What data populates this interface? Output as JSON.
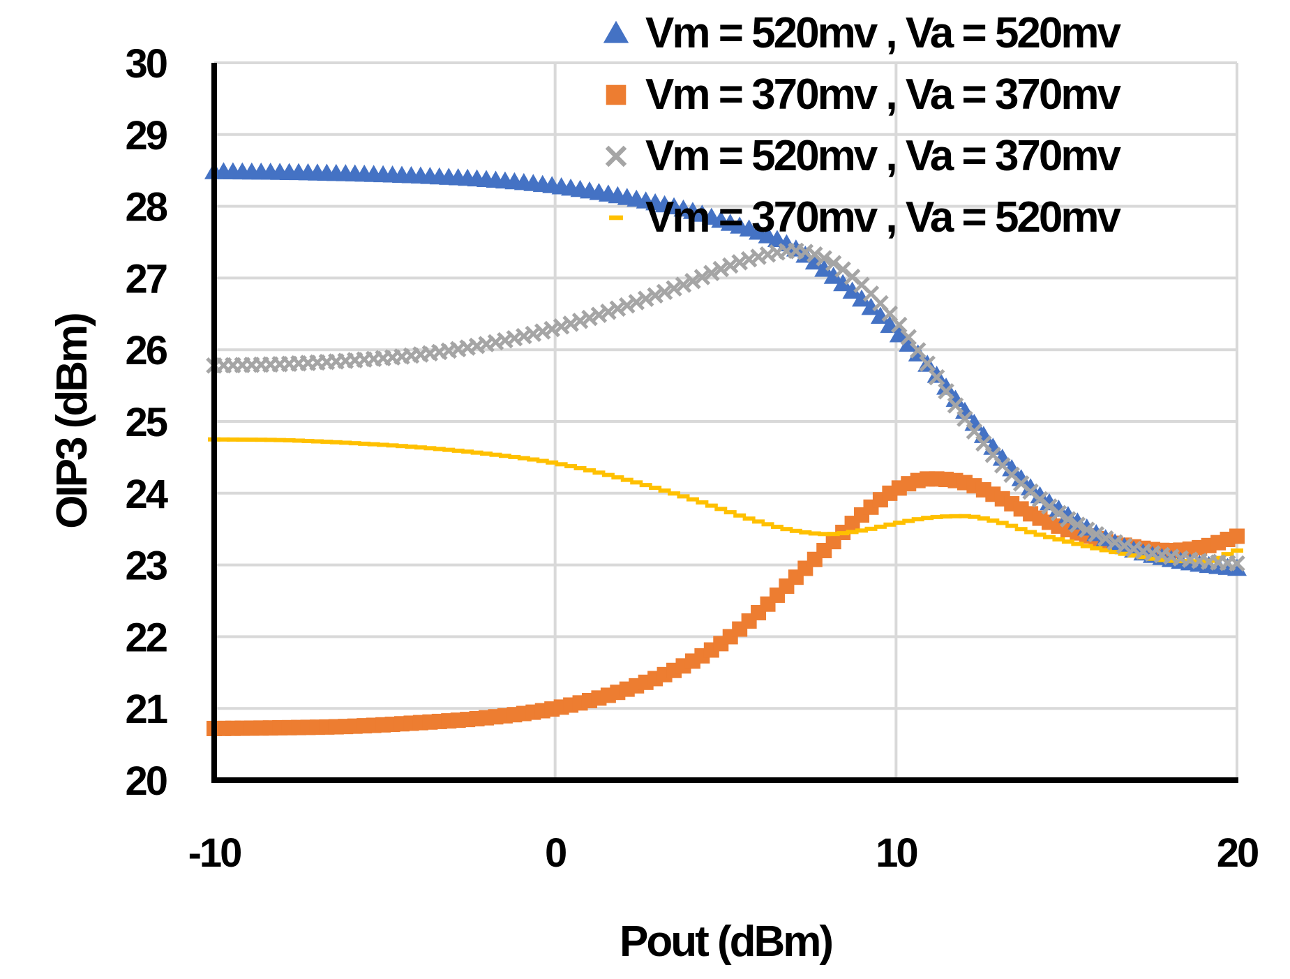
{
  "chart_data": {
    "type": "scatter",
    "title": "",
    "xlabel": "Pout (dBm)",
    "ylabel": "OIP3 (dBm)",
    "xlim": [
      -10,
      20
    ],
    "ylim": [
      20,
      30
    ],
    "xticks": [
      -10,
      0,
      10,
      20
    ],
    "yticks": [
      20,
      21,
      22,
      23,
      24,
      25,
      26,
      27,
      28,
      29,
      30
    ],
    "xtick_labels": [
      "-10",
      "0",
      "10",
      "20"
    ],
    "ytick_labels": [
      "20",
      "21",
      "22",
      "23",
      "24",
      "25",
      "26",
      "27",
      "28",
      "29",
      "30"
    ],
    "grid": true,
    "legend_position": "top-right",
    "series": [
      {
        "name": "Vm = 520mv , Va = 520mv",
        "marker": "triangle",
        "color": "#4472c4",
        "x": [
          -10,
          -8,
          -6,
          -4,
          -2,
          0,
          2,
          4,
          5,
          6,
          7,
          8,
          9,
          10,
          11,
          12,
          13,
          14,
          15,
          16,
          17,
          18,
          19,
          20
        ],
        "y": [
          28.48,
          28.47,
          28.45,
          28.42,
          28.37,
          28.28,
          28.13,
          27.93,
          27.78,
          27.63,
          27.42,
          27.08,
          26.7,
          26.25,
          25.75,
          25.15,
          24.55,
          24.05,
          23.7,
          23.4,
          23.2,
          23.08,
          23.0,
          22.95
        ]
      },
      {
        "name": "Vm = 370mv , Va = 370mv",
        "marker": "square",
        "color": "#ed7d31",
        "x": [
          -10,
          -8,
          -6,
          -4,
          -2,
          0,
          2,
          4,
          5,
          6,
          7,
          8,
          9,
          10,
          11,
          12,
          13,
          14,
          15,
          16,
          17,
          18,
          19,
          20
        ],
        "y": [
          20.72,
          20.73,
          20.75,
          20.8,
          20.87,
          21.0,
          21.25,
          21.65,
          21.95,
          22.35,
          22.8,
          23.25,
          23.7,
          24.05,
          24.2,
          24.15,
          23.95,
          23.7,
          23.5,
          23.35,
          23.25,
          23.2,
          23.25,
          23.4
        ]
      },
      {
        "name": "Vm = 520mv , Va = 370mv",
        "marker": "x",
        "color": "#a5a5a5",
        "x": [
          -10,
          -8,
          -6,
          -4,
          -2,
          0,
          2,
          4,
          5,
          6,
          7,
          8,
          9,
          10,
          11,
          12,
          13,
          14,
          15,
          16,
          17,
          18,
          19,
          20
        ],
        "y": [
          25.78,
          25.8,
          25.85,
          25.93,
          26.08,
          26.3,
          26.6,
          26.95,
          27.15,
          27.3,
          27.38,
          27.25,
          26.9,
          26.4,
          25.75,
          25.05,
          24.45,
          24.0,
          23.65,
          23.4,
          23.22,
          23.12,
          23.05,
          23.02
        ]
      },
      {
        "name": "Vm = 370mv , Va = 520mv",
        "marker": "dash",
        "color": "#ffc000",
        "x": [
          -10,
          -8,
          -6,
          -4,
          -2,
          0,
          2,
          4,
          6,
          7,
          8,
          9,
          10,
          11,
          12,
          13,
          14,
          15,
          16,
          17,
          18,
          19,
          20
        ],
        "y": [
          24.75,
          24.74,
          24.7,
          24.64,
          24.55,
          24.42,
          24.2,
          23.92,
          23.6,
          23.48,
          23.43,
          23.48,
          23.58,
          23.66,
          23.68,
          23.6,
          23.45,
          23.33,
          23.22,
          23.13,
          23.06,
          23.05,
          23.2
        ]
      }
    ]
  }
}
